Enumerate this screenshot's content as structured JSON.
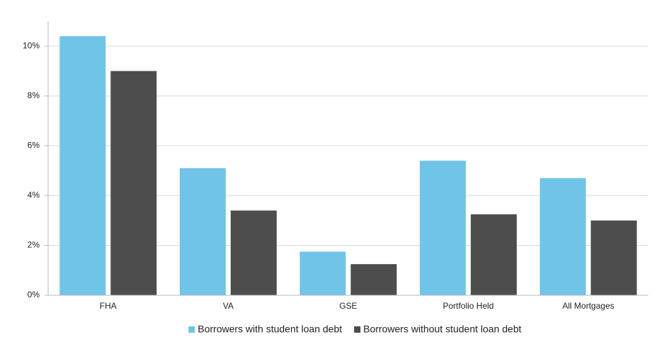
{
  "chart_data": {
    "type": "bar",
    "categories": [
      "FHA",
      "VA",
      "GSE",
      "Portfolio Held",
      "All Mortgages"
    ],
    "series": [
      {
        "name": "Borrowers with student loan debt",
        "color": "#70c4e8",
        "values": [
          10.4,
          5.1,
          1.75,
          5.4,
          4.7
        ]
      },
      {
        "name": "Borrowers without student loan debt",
        "color": "#4d4d4d",
        "values": [
          9.0,
          3.4,
          1.25,
          3.25,
          3.0
        ]
      }
    ],
    "ylim": [
      0,
      11
    ],
    "yticks": [
      {
        "value": 0,
        "label": "0%"
      },
      {
        "value": 2,
        "label": "2%"
      },
      {
        "value": 4,
        "label": "4%"
      },
      {
        "value": 6,
        "label": "6%"
      },
      {
        "value": 8,
        "label": "8%"
      },
      {
        "value": 10,
        "label": "10%"
      }
    ],
    "grid": true,
    "legend": "bottom"
  }
}
